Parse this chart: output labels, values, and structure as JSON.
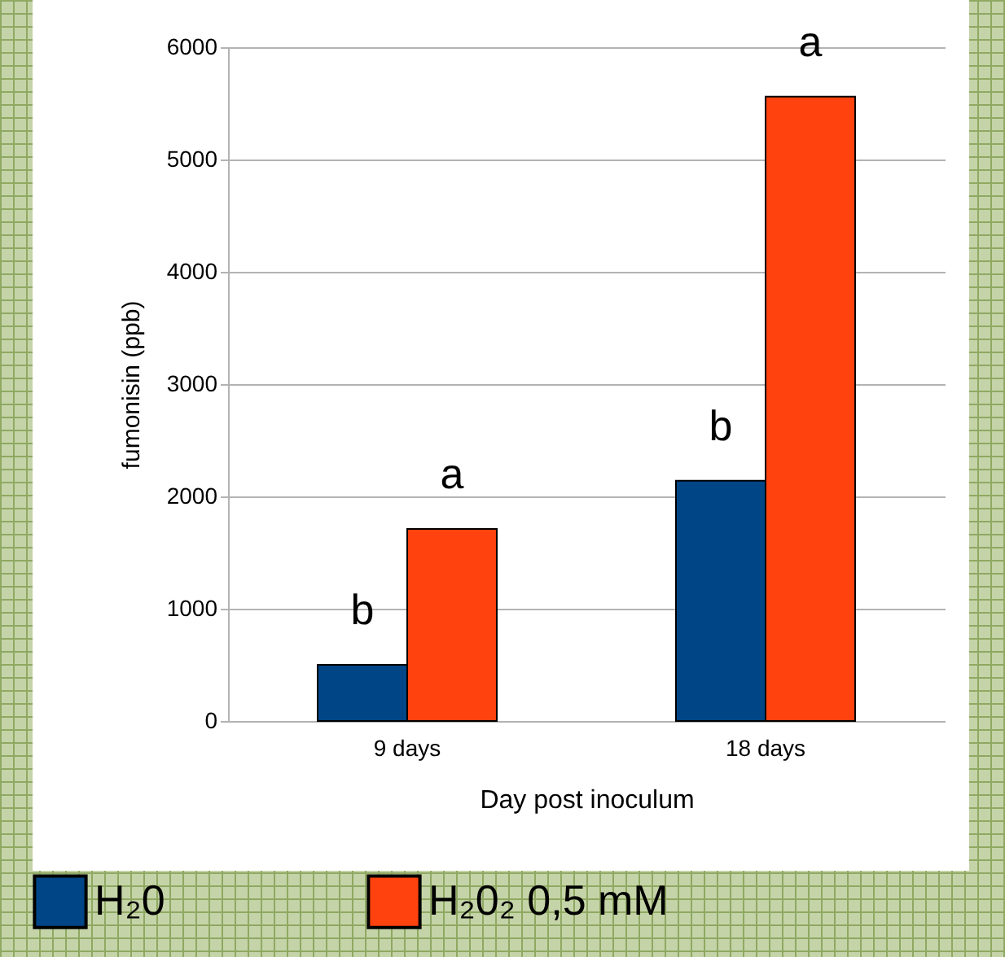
{
  "chart_data": {
    "type": "bar",
    "xlabel": "Day post inoculum",
    "ylabel": "fumonisin (ppb)",
    "categories": [
      "9 days",
      "18 days"
    ],
    "series": [
      {
        "name": "H₂0",
        "color": "#004586",
        "values": [
          500,
          2140
        ]
      },
      {
        "name": "H₂0₂ 0,5 mM",
        "color": "#ff420e",
        "values": [
          1710,
          5560
        ]
      }
    ],
    "ylim": [
      0,
      6000
    ],
    "yticks": [
      0,
      1000,
      2000,
      3000,
      4000,
      5000,
      6000
    ],
    "grid": "y",
    "legend": "bottom",
    "annotations": [
      {
        "text": "b",
        "x": "9 days",
        "y": 500
      },
      {
        "text": "a",
        "x": "9 days",
        "y": 1710
      },
      {
        "text": "b",
        "x": "18 days",
        "y": 2140
      },
      {
        "text": "a",
        "x": "18 days",
        "y": 5560
      }
    ]
  }
}
